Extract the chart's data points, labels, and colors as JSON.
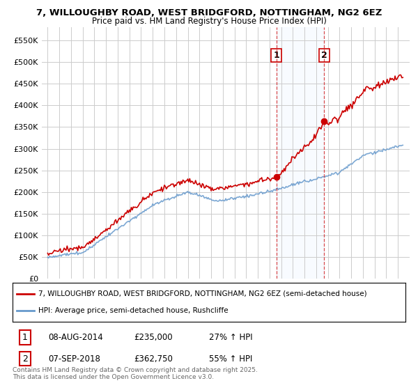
{
  "title_line1": "7, WILLOUGHBY ROAD, WEST BRIDGFORD, NOTTINGHAM, NG2 6EZ",
  "title_line2": "Price paid vs. HM Land Registry's House Price Index (HPI)",
  "background_color": "#ffffff",
  "plot_bg_color": "#ffffff",
  "grid_color": "#cccccc",
  "hpi_color": "#6699cc",
  "price_color": "#cc0000",
  "shade_color": "#ddeeff",
  "purchase1_year": 2014,
  "purchase1_month": 8,
  "purchase1_price": 235000,
  "purchase2_year": 2018,
  "purchase2_month": 9,
  "purchase2_price": 362750,
  "ylim_min": 0,
  "ylim_max": 580000,
  "yticks": [
    0,
    50000,
    100000,
    150000,
    200000,
    250000,
    300000,
    350000,
    400000,
    450000,
    500000,
    550000
  ],
  "ytick_labels": [
    "£0",
    "£50K",
    "£100K",
    "£150K",
    "£200K",
    "£250K",
    "£300K",
    "£350K",
    "£400K",
    "£450K",
    "£500K",
    "£550K"
  ],
  "legend_line1": "7, WILLOUGHBY ROAD, WEST BRIDGFORD, NOTTINGHAM, NG2 6EZ (semi-detached house)",
  "legend_line2": "HPI: Average price, semi-detached house, Rushcliffe",
  "footer": "Contains HM Land Registry data © Crown copyright and database right 2025.\nThis data is licensed under the Open Government Licence v3.0.",
  "annotation1_date_label": "08-AUG-2014",
  "annotation1_price_label": "£235,000",
  "annotation1_pct_label": "27% ↑ HPI",
  "annotation2_date_label": "07-SEP-2018",
  "annotation2_price_label": "£362,750",
  "annotation2_pct_label": "55% ↑ HPI",
  "start_year": 1995,
  "end_year": 2025,
  "xlim_min": 1994.5,
  "xlim_max": 2026.0
}
